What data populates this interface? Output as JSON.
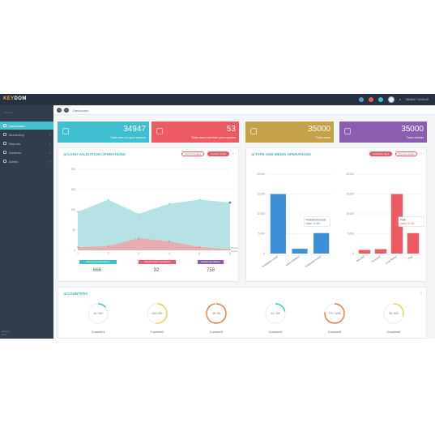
{
  "app": {
    "logo_a": "KEY",
    "logo_b": "DOM",
    "topbar_time": "06/06/17 13:00:42"
  },
  "sidebar": {
    "search_placeholder": "Search...",
    "items": [
      {
        "label": "Dashboard",
        "active": true
      },
      {
        "label": "Monitoring",
        "active": false
      },
      {
        "label": "Reports",
        "active": false
      },
      {
        "label": "Archives",
        "active": false
      },
      {
        "label": "Admin",
        "active": false
      }
    ],
    "footer_line1": "Version",
    "footer_line2": "2.0.1"
  },
  "breadcrumb": {
    "label": "Dashboard"
  },
  "stats": [
    {
      "value": "34947",
      "label": "Total users in your system",
      "color": "#3fbfcf"
    },
    {
      "value": "53",
      "label": "Total users out from your system",
      "color": "#ee5a63"
    },
    {
      "value": "35000",
      "label": "Total users",
      "color": "#c5a24a"
    },
    {
      "value": "35000",
      "label": "Total medias",
      "color": "#8a5db0"
    }
  ],
  "card_panel": {
    "title": "CARD VALIDATION OPERATIONS",
    "btn_last": "Last thirty days",
    "btn_current": "Current month",
    "legend_a": "Succes",
    "legend_b": "Unsuc",
    "badges": [
      {
        "label": "Successful operations",
        "value": "666",
        "color": "#3fbfcf"
      },
      {
        "label": "Unsuccessful operations",
        "value": "92",
        "color": "#ee5a63"
      },
      {
        "label": "Global operations",
        "value": "758",
        "color": "#8a5db0"
      }
    ]
  },
  "type_panel": {
    "title": "TYPE AND MEDIA OPERATIONS",
    "btn_last": "Last thirty days",
    "btn_current": "Current month",
    "tooltip_left_title": "Pedestrian transit",
    "tooltip_left_value": "value: 5.156",
    "tooltip_right_title": "Plain",
    "tooltip_right_value": "value: 5.156"
  },
  "counters_panel": {
    "title": "COUNTERS",
    "items": [
      {
        "name": "Counter1",
        "text": "14 / 100",
        "fraction": 0.14,
        "color": "#3fbfcf"
      },
      {
        "name": "Counter2",
        "text": "104 / 200",
        "fraction": 0.52,
        "color": "#f2c94c"
      },
      {
        "name": "Counter3",
        "text": "49 / 50",
        "fraction": 0.98,
        "color": "#e8743b"
      },
      {
        "name": "Counter4",
        "text": "22 / 100",
        "fraction": 0.22,
        "color": "#3fbfcf"
      },
      {
        "name": "Counter5",
        "text": "770 / 1000",
        "fraction": 0.77,
        "color": "#e8743b"
      },
      {
        "name": "Counter6",
        "text": "90 / 300",
        "fraction": 0.3,
        "color": "#f2c94c"
      }
    ]
  },
  "chart_data": [
    {
      "type": "area",
      "title": "CARD VALIDATION OPERATIONS",
      "x": [
        1,
        2,
        3,
        4,
        5,
        6
      ],
      "yticks": [
        0,
        50,
        100,
        150,
        200
      ],
      "ylim": [
        0,
        200
      ],
      "series": [
        {
          "name": "Succes",
          "values": [
            95,
            125,
            90,
            115,
            125,
            118
          ],
          "color": "#a9dde2"
        },
        {
          "name": "Unsuc",
          "values": [
            8,
            10,
            30,
            22,
            8,
            2
          ],
          "color": "#f0a2a4"
        }
      ]
    },
    {
      "type": "bar",
      "categories": [
        "Pedestrian transit",
        "Card validation",
        "Pedestrian transit"
      ],
      "yticks": [
        0,
        5000,
        10000,
        15000,
        20000
      ],
      "ylim": [
        0,
        20000
      ],
      "values": [
        15000,
        1200,
        5156
      ],
      "color": "#3a8fd6"
    },
    {
      "type": "bar",
      "categories": [
        "Bracelet",
        "Pendants",
        "Long Range",
        "Plain"
      ],
      "yticks": [
        0,
        5000,
        10000,
        15000,
        20000
      ],
      "ylim": [
        0,
        20000
      ],
      "values": [
        900,
        1100,
        15000,
        5156
      ],
      "color": "#ee5a63"
    }
  ]
}
